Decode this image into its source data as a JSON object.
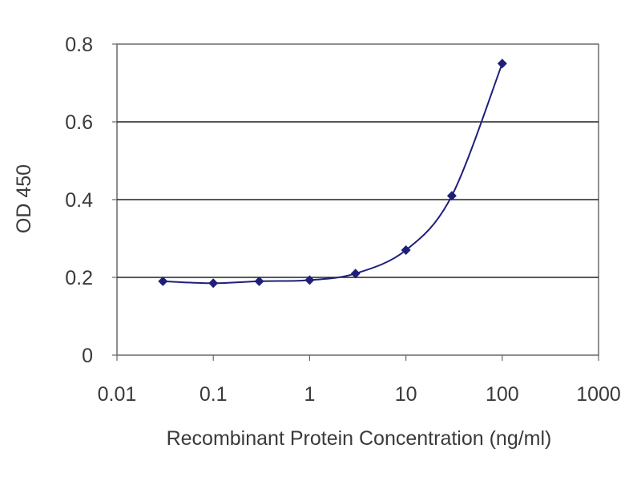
{
  "chart_data": {
    "type": "scatter",
    "title": "",
    "xlabel": "Recombinant Protein Concentration (ng/ml)",
    "ylabel": "OD 450",
    "x_scale": "log",
    "xlim": [
      0.01,
      1000
    ],
    "ylim": [
      0,
      0.8
    ],
    "x_ticks": [
      "0.01",
      "0.1",
      "1",
      "10",
      "100",
      "1000"
    ],
    "y_ticks": [
      "0",
      "0.2",
      "0.4",
      "0.6",
      "0.8"
    ],
    "grid": "horizontal",
    "legend": "none",
    "series": [
      {
        "x": [
          0.03,
          0.1,
          0.3,
          1,
          3,
          10,
          30,
          100
        ],
        "y": [
          0.19,
          0.185,
          0.19,
          0.193,
          0.21,
          0.27,
          0.41,
          0.75
        ],
        "marker": "diamond",
        "fitted_curve": true
      }
    ],
    "colors": {
      "series": "#1f1f7a",
      "grid": "#222222",
      "frame": "#666666"
    }
  }
}
